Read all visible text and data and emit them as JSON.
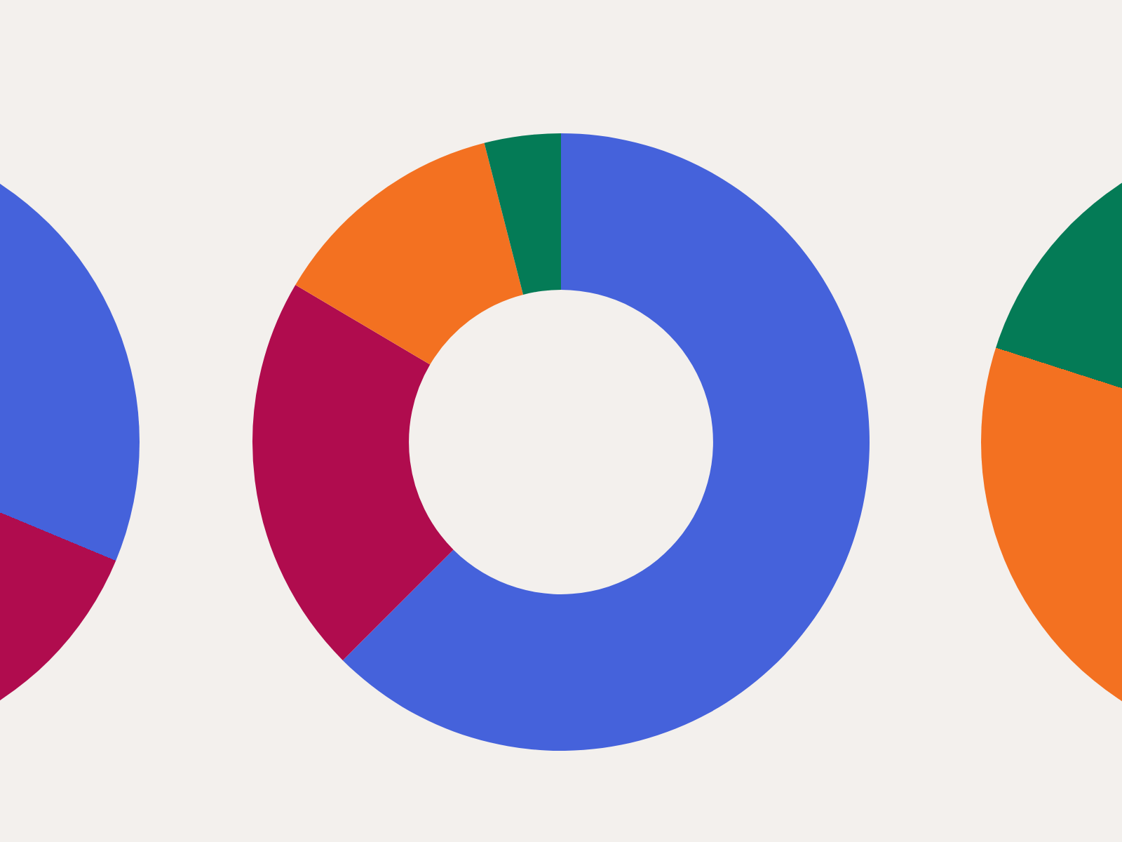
{
  "chart_data": {
    "type": "donut",
    "categories": [
      null,
      null,
      null,
      null
    ],
    "values": [
      62.5,
      21,
      12.5,
      4
    ],
    "colors": [
      "#4562db",
      "#b00c4e",
      "#f37121",
      "#047b56"
    ],
    "legend": false
  }
}
